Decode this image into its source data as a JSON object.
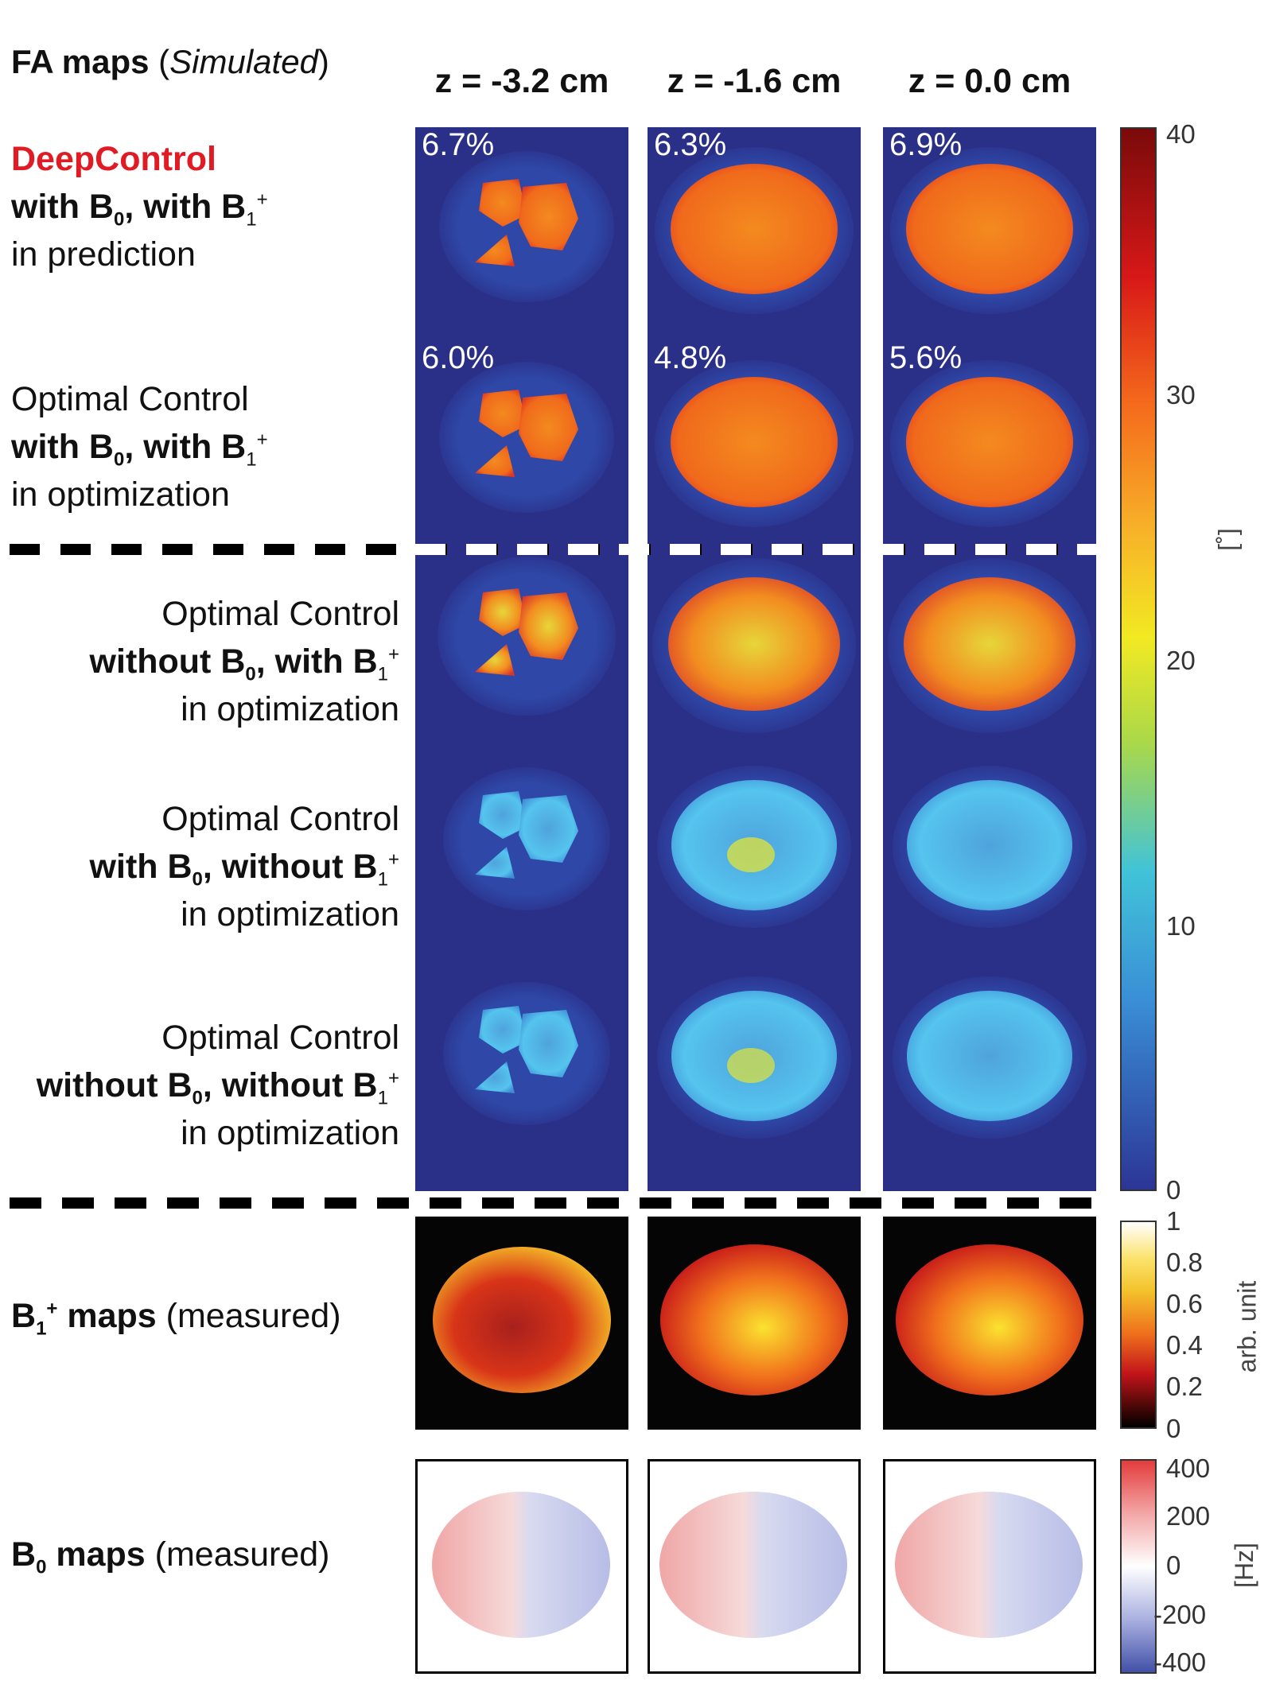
{
  "title": {
    "bold": "FA maps",
    "italic": "Simulated"
  },
  "columns": [
    "z = -3.2 cm",
    "z = -1.6 cm",
    "z = 0.0 cm"
  ],
  "rows": [
    {
      "line1": "DeepControl",
      "line2a": "with B",
      "line2b": "0",
      "line2c": ", with B",
      "line2d": "1",
      "line2e": "+",
      "line3": "in prediction",
      "percents": [
        "6.7%",
        "6.3%",
        "6.9%"
      ]
    },
    {
      "line1": "Optimal Control",
      "line2a": "with B",
      "line2b": "0",
      "line2c": ", with B",
      "line2d": "1",
      "line2e": "+",
      "line3": "in optimization",
      "percents": [
        "6.0%",
        "4.8%",
        "5.6%"
      ]
    },
    {
      "line1": "Optimal Control",
      "line2a": "without B",
      "line2b": "0",
      "line2c": ", with B",
      "line2d": "1",
      "line2e": "+",
      "line3": "in optimization"
    },
    {
      "line1": "Optimal Control",
      "line2a": "with B",
      "line2b": "0",
      "line2c": ", without B",
      "line2d": "1",
      "line2e": "+",
      "line3": "in optimization"
    },
    {
      "line1": "Optimal Control",
      "line2a": "without B",
      "line2b": "0",
      "line2c": ", without B",
      "line2d": "1",
      "line2e": "+",
      "line3": "in optimization"
    }
  ],
  "b1_label": {
    "a": "B",
    "sub": "1",
    "sup": "+",
    "b": " maps",
    "c": " (measured)"
  },
  "b0_label": {
    "a": "B",
    "sub": "0",
    "b": " maps",
    "c": " (measured)"
  },
  "colorbars": {
    "fa": {
      "ticks": [
        "40",
        "30",
        "20",
        "10",
        "0"
      ],
      "unit": "[˚]"
    },
    "b1": {
      "ticks": [
        "1",
        "0.8",
        "0.6",
        "0.4",
        "0.2",
        "0"
      ],
      "unit": "arb. unit"
    },
    "b0": {
      "ticks": [
        "400",
        "200",
        "0",
        "-200",
        "-400"
      ],
      "unit": "[Hz]"
    }
  },
  "colors": {
    "background_blue": "#2a2f88",
    "deepcontrol_red": "#e01b24"
  }
}
